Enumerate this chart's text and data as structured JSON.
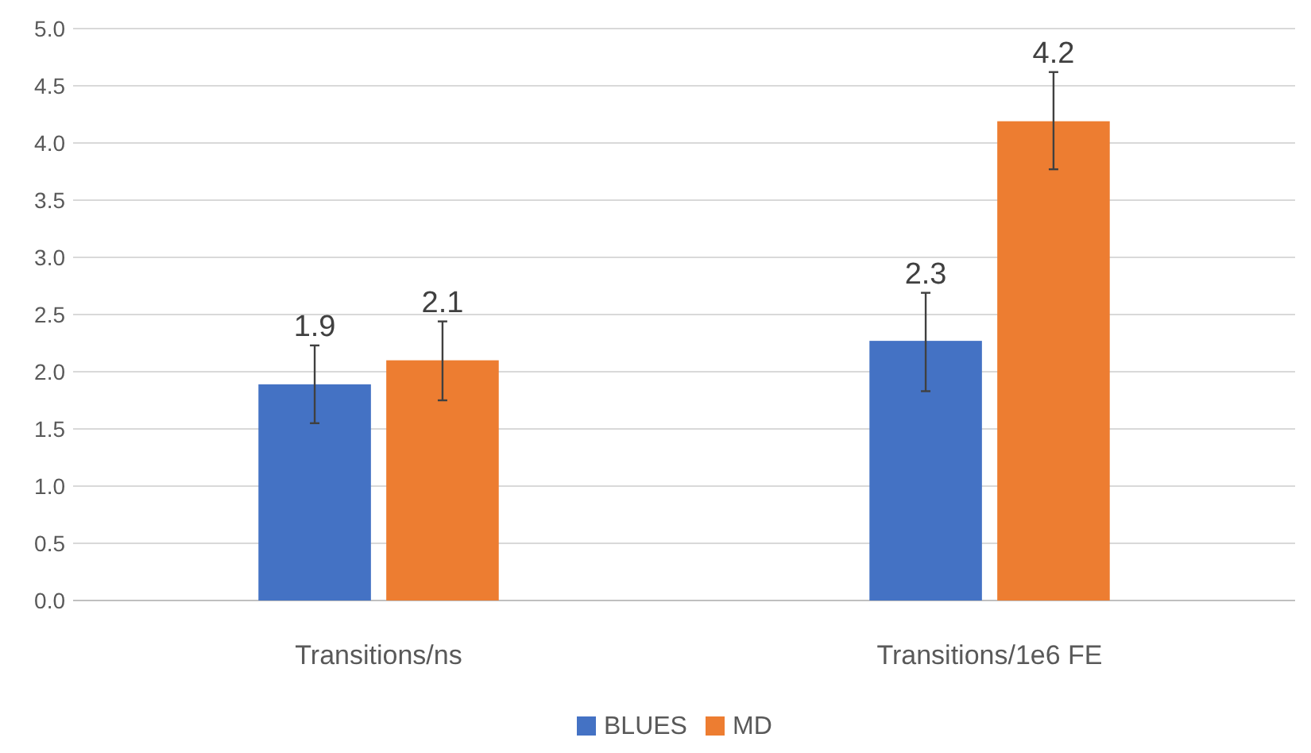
{
  "chart_data": {
    "type": "bar",
    "categories": [
      "Transitions/ns",
      "Transitions/1e6 FE"
    ],
    "series": [
      {
        "name": "BLUES",
        "color": "#4472c4",
        "values": [
          1.89,
          2.27
        ],
        "errors": [
          [
            1.55,
            2.23
          ],
          [
            1.83,
            2.69
          ]
        ],
        "value_labels": [
          "1.9",
          "2.3"
        ]
      },
      {
        "name": "MD",
        "color": "#ed7d31",
        "values": [
          2.1,
          4.19
        ],
        "errors": [
          [
            1.75,
            2.44
          ],
          [
            3.77,
            4.62
          ]
        ],
        "value_labels": [
          "2.1",
          "4.2"
        ]
      }
    ],
    "ylim": [
      0,
      5
    ],
    "yticks": [
      {
        "value": 0,
        "label": "0.0"
      },
      {
        "value": 0.5,
        "label": "0.5"
      },
      {
        "value": 1,
        "label": "1.0"
      },
      {
        "value": 1.5,
        "label": "1.5"
      },
      {
        "value": 2,
        "label": "2.0"
      },
      {
        "value": 2.5,
        "label": "2.5"
      },
      {
        "value": 3,
        "label": "3.0"
      },
      {
        "value": 3.5,
        "label": "3.5"
      },
      {
        "value": 4,
        "label": "4.0"
      },
      {
        "value": 4.5,
        "label": "4.5"
      },
      {
        "value": 5,
        "label": "5.0"
      }
    ],
    "grid": "y",
    "legend": "bottom"
  }
}
